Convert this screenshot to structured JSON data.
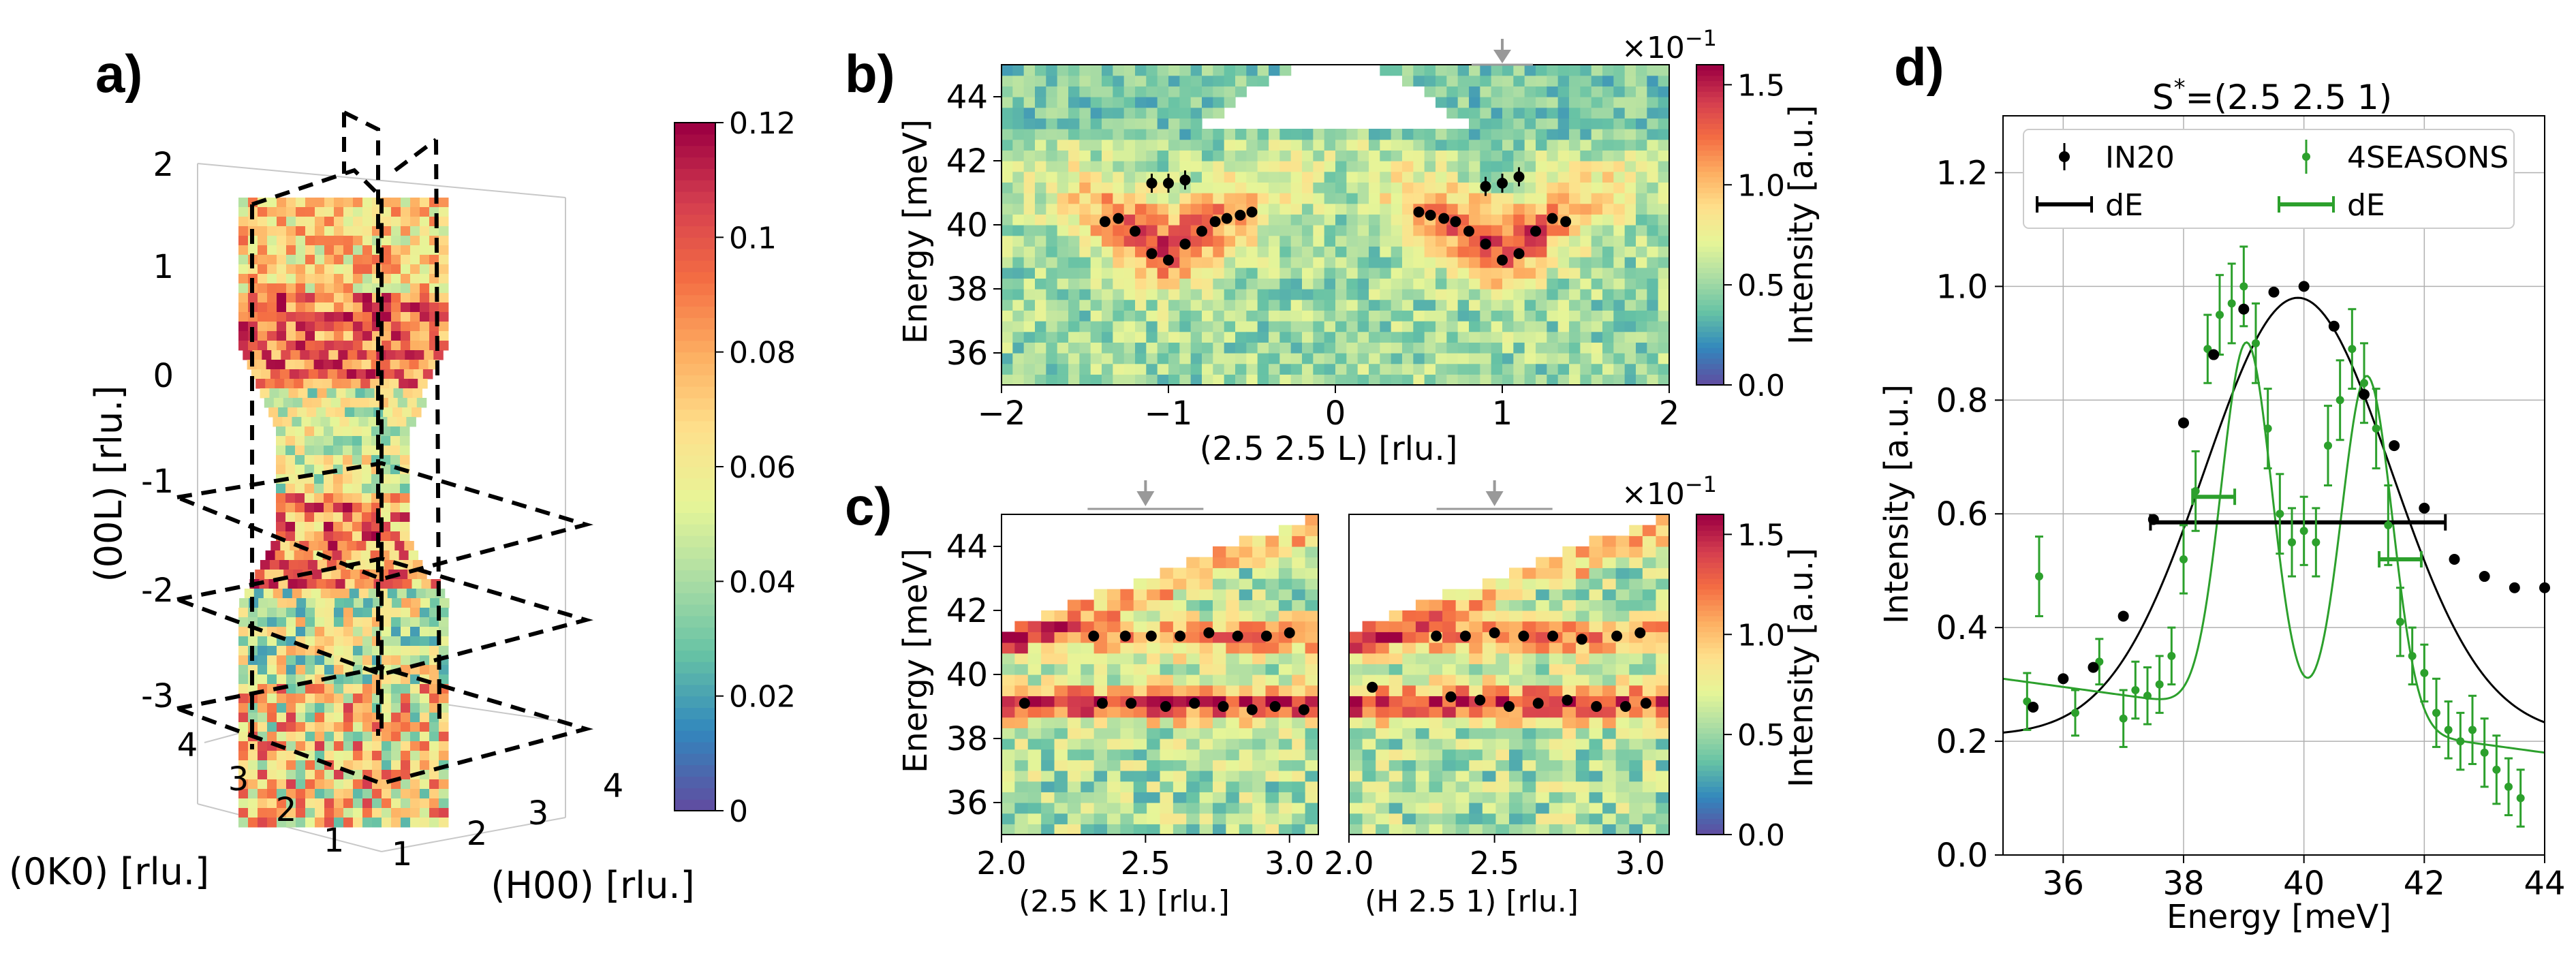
{
  "figure": {
    "panel_labels": {
      "a": "a)",
      "b": "b)",
      "c": "c)",
      "d": "d)"
    }
  },
  "colors": {
    "colormap": [
      "#5e4fa2",
      "#3288bd",
      "#66c2a5",
      "#abdda4",
      "#e6f598",
      "#fee08b",
      "#fdae61",
      "#f46d43",
      "#d53e4f",
      "#9e0142"
    ],
    "in20": "#000000",
    "seasons": "#2ca02c",
    "grid": "#b0b0b0",
    "arrow": "#999999"
  },
  "chart_data": [
    {
      "id": "a",
      "type": "heatmap",
      "view": "3d-volume",
      "xlabel": "(0K0) [rlu.]",
      "ylabel": "(H00) [rlu.]",
      "zlabel": "(00L) [rlu.]",
      "x_ticks": [
        "1",
        "2",
        "3",
        "4"
      ],
      "y_ticks": [
        "1",
        "2",
        "3",
        "4"
      ],
      "z_ticks": [
        "2",
        "1",
        "0",
        "-1",
        "-2",
        "-3"
      ],
      "colorbar_ticks": [
        "0.12",
        "0.1",
        "0.08",
        "0.06",
        "0.04",
        "0.02",
        "0"
      ],
      "colorbar_range": [
        0,
        0.12
      ]
    },
    {
      "id": "b",
      "type": "heatmap",
      "xlabel": "(2.5 2.5 L)  [rlu.]",
      "ylabel": "Energy [meV]",
      "xlim": [
        -2,
        2
      ],
      "ylim": [
        35,
        45
      ],
      "x_ticks": [
        "−2",
        "−1",
        "0",
        "1",
        "2"
      ],
      "y_ticks": [
        "44",
        "42",
        "40",
        "38",
        "36"
      ],
      "colorbar_label": "Intensity [a.u.]",
      "colorbar_ticks": [
        "1.5",
        "1.0",
        "0.5",
        "0.0"
      ],
      "colorbar_range": [
        0,
        1.6
      ],
      "colorbar_exponent": "×10",
      "colorbar_exponent_power": "−1",
      "arrow_marker_x": 1.0,
      "points": [
        {
          "x": -1.38,
          "y": 40.1
        },
        {
          "x": -1.3,
          "y": 40.2
        },
        {
          "x": -1.2,
          "y": 39.8
        },
        {
          "x": -1.1,
          "y": 39.1
        },
        {
          "x": -1.0,
          "y": 38.9
        },
        {
          "x": -0.9,
          "y": 39.4
        },
        {
          "x": -0.8,
          "y": 39.8
        },
        {
          "x": -0.72,
          "y": 40.1
        },
        {
          "x": -0.65,
          "y": 40.2
        },
        {
          "x": -0.57,
          "y": 40.3
        },
        {
          "x": -0.5,
          "y": 40.4
        },
        {
          "x": -1.1,
          "y": 41.3
        },
        {
          "x": -1.0,
          "y": 41.3
        },
        {
          "x": -0.9,
          "y": 41.4
        },
        {
          "x": 0.5,
          "y": 40.4
        },
        {
          "x": 0.57,
          "y": 40.3
        },
        {
          "x": 0.65,
          "y": 40.2
        },
        {
          "x": 0.72,
          "y": 40.1
        },
        {
          "x": 0.8,
          "y": 39.8
        },
        {
          "x": 0.9,
          "y": 39.4
        },
        {
          "x": 1.0,
          "y": 38.9
        },
        {
          "x": 1.1,
          "y": 39.1
        },
        {
          "x": 1.2,
          "y": 39.8
        },
        {
          "x": 1.3,
          "y": 40.2
        },
        {
          "x": 1.38,
          "y": 40.1
        },
        {
          "x": 0.9,
          "y": 41.2
        },
        {
          "x": 1.0,
          "y": 41.3
        },
        {
          "x": 1.1,
          "y": 41.5
        }
      ]
    },
    {
      "id": "c-left",
      "type": "heatmap",
      "xlabel": "(2.5 K 1)  [rlu.]",
      "ylabel": "Energy [meV]",
      "xlim": [
        2.0,
        3.1
      ],
      "ylim": [
        35,
        45
      ],
      "x_ticks": [
        "2.0",
        "2.5",
        "3.0"
      ],
      "y_ticks": [
        "44",
        "42",
        "40",
        "38",
        "36"
      ],
      "arrow_marker_x": 2.5,
      "points": [
        {
          "x": 2.08,
          "y": 39.1
        },
        {
          "x": 2.32,
          "y": 41.2
        },
        {
          "x": 2.35,
          "y": 39.1
        },
        {
          "x": 2.43,
          "y": 41.2
        },
        {
          "x": 2.45,
          "y": 39.1
        },
        {
          "x": 2.52,
          "y": 41.2
        },
        {
          "x": 2.57,
          "y": 39.0
        },
        {
          "x": 2.62,
          "y": 41.2
        },
        {
          "x": 2.67,
          "y": 39.1
        },
        {
          "x": 2.72,
          "y": 41.3
        },
        {
          "x": 2.77,
          "y": 39.0
        },
        {
          "x": 2.82,
          "y": 41.2
        },
        {
          "x": 2.87,
          "y": 38.9
        },
        {
          "x": 2.92,
          "y": 41.2
        },
        {
          "x": 2.95,
          "y": 39.0
        },
        {
          "x": 3.0,
          "y": 41.3
        },
        {
          "x": 3.05,
          "y": 38.9
        }
      ]
    },
    {
      "id": "c-right",
      "type": "heatmap",
      "xlabel": "(H 2.5 1)  [rlu.]",
      "ylabel": "",
      "xlim": [
        2.0,
        3.1
      ],
      "ylim": [
        35,
        45
      ],
      "x_ticks": [
        "2.0",
        "2.5",
        "3.0"
      ],
      "colorbar_label": "Intensity [a.u.]",
      "colorbar_ticks": [
        "1.5",
        "1.0",
        "0.5",
        "0.0"
      ],
      "colorbar_range": [
        0,
        1.6
      ],
      "colorbar_exponent": "×10",
      "colorbar_exponent_power": "−1",
      "arrow_marker_x": 2.5,
      "points": [
        {
          "x": 2.08,
          "y": 39.6
        },
        {
          "x": 2.3,
          "y": 41.2
        },
        {
          "x": 2.35,
          "y": 39.3
        },
        {
          "x": 2.4,
          "y": 41.2
        },
        {
          "x": 2.45,
          "y": 39.2
        },
        {
          "x": 2.5,
          "y": 41.3
        },
        {
          "x": 2.55,
          "y": 39.0
        },
        {
          "x": 2.6,
          "y": 41.2
        },
        {
          "x": 2.65,
          "y": 39.1
        },
        {
          "x": 2.7,
          "y": 41.2
        },
        {
          "x": 2.75,
          "y": 39.2
        },
        {
          "x": 2.8,
          "y": 41.1
        },
        {
          "x": 2.85,
          "y": 39.0
        },
        {
          "x": 2.92,
          "y": 41.2
        },
        {
          "x": 2.95,
          "y": 39.0
        },
        {
          "x": 3.0,
          "y": 41.3
        },
        {
          "x": 3.02,
          "y": 39.1
        }
      ]
    },
    {
      "id": "d",
      "type": "scatter",
      "title": "S",
      "title_sup": "*",
      "title_rest": "=(2.5 2.5 1)",
      "xlabel": "Energy [meV]",
      "ylabel": "Intensity [a.u.]",
      "xlim": [
        35,
        44
      ],
      "ylim": [
        0,
        1.3
      ],
      "x_ticks": [
        "36",
        "38",
        "40",
        "42",
        "44"
      ],
      "y_ticks": [
        "1.2",
        "1.0",
        "0.8",
        "0.6",
        "0.4",
        "0.2",
        "0.0"
      ],
      "grid": true,
      "legend_placement": "top",
      "legend": [
        "IN20",
        "dE",
        "4SEASONS",
        "dE"
      ],
      "series": [
        {
          "name": "IN20",
          "x": [
            35.5,
            36.0,
            36.5,
            37.0,
            37.5,
            38.0,
            38.5,
            39.0,
            39.5,
            40.0,
            40.5,
            41.0,
            41.5,
            42.0,
            42.5,
            43.0,
            43.5,
            44.0
          ],
          "y": [
            0.26,
            0.31,
            0.33,
            0.42,
            0.59,
            0.76,
            0.88,
            0.96,
            0.99,
            1.0,
            0.93,
            0.81,
            0.72,
            0.61,
            0.52,
            0.49,
            0.47,
            0.47
          ],
          "err": [
            0.02,
            0.02,
            0.01,
            0.01,
            0.01,
            0.01,
            0.01,
            0.01,
            0.01,
            0.01,
            0.01,
            0.01,
            0.01,
            0.01,
            0.01,
            0.01,
            0.01,
            0.01
          ]
        },
        {
          "name": "4SEASONS",
          "x": [
            35.4,
            35.6,
            36.2,
            36.6,
            37.0,
            37.2,
            37.4,
            37.6,
            37.8,
            38.0,
            38.2,
            38.4,
            38.6,
            38.8,
            39.0,
            39.2,
            39.4,
            39.6,
            39.8,
            40.0,
            40.2,
            40.4,
            40.6,
            40.8,
            41.0,
            41.2,
            41.4,
            41.6,
            41.8,
            42.0,
            42.2,
            42.4,
            42.6,
            42.8,
            43.0,
            43.2,
            43.4,
            43.6
          ],
          "y": [
            0.27,
            0.49,
            0.25,
            0.34,
            0.24,
            0.29,
            0.28,
            0.3,
            0.35,
            0.52,
            0.64,
            0.89,
            0.95,
            0.97,
            1.0,
            0.9,
            0.75,
            0.6,
            0.55,
            0.57,
            0.55,
            0.72,
            0.8,
            0.89,
            0.83,
            0.75,
            0.58,
            0.41,
            0.35,
            0.32,
            0.25,
            0.22,
            0.2,
            0.22,
            0.18,
            0.15,
            0.12,
            0.1
          ],
          "err": [
            0.05,
            0.07,
            0.04,
            0.04,
            0.05,
            0.05,
            0.05,
            0.05,
            0.05,
            0.06,
            0.07,
            0.06,
            0.07,
            0.07,
            0.07,
            0.07,
            0.07,
            0.07,
            0.06,
            0.06,
            0.06,
            0.07,
            0.07,
            0.07,
            0.07,
            0.07,
            0.07,
            0.06,
            0.05,
            0.05,
            0.06,
            0.05,
            0.05,
            0.06,
            0.06,
            0.06,
            0.05,
            0.05
          ]
        }
      ],
      "fits": [
        {
          "name": "IN20 fit",
          "type": "gaussian",
          "center": 39.9,
          "sigma": 1.55,
          "amplitude": 0.77,
          "offset": 0.21,
          "color": "#000000"
        },
        {
          "name": "4SEASONS fit",
          "type": "double-gaussian",
          "centers": [
            39.05,
            41.05
          ],
          "sigma": 0.42,
          "amplitudes": [
            0.65,
            0.62
          ],
          "offset": 0.18,
          "slope_offset": 0.31,
          "color": "#2ca02c"
        }
      ],
      "resolution_bars": [
        {
          "label": "dE",
          "series": "IN20",
          "center": 39.9,
          "half_width": 2.45,
          "y": 0.585,
          "color": "#000000"
        },
        {
          "label": "dE",
          "series": "4SEASONS",
          "center": 38.5,
          "half_width": 0.35,
          "y": 0.63,
          "color": "#2ca02c"
        },
        {
          "label": "dE",
          "series": "4SEASONS",
          "center": 41.6,
          "half_width": 0.35,
          "y": 0.52,
          "color": "#2ca02c"
        }
      ]
    }
  ]
}
